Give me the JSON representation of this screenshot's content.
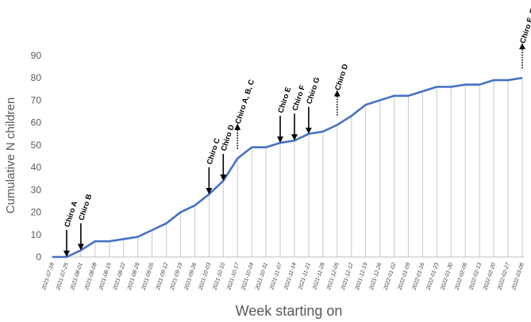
{
  "chart_data": {
    "type": "line",
    "title": "",
    "xlabel": "Week starting on",
    "ylabel": "Cumulative N children",
    "ylim": [
      0,
      90
    ],
    "yticks": [
      0,
      10,
      20,
      30,
      40,
      50,
      60,
      70,
      80,
      90
    ],
    "grid": "vertical drop lines",
    "line_color": "#4472c4",
    "dropline_color": "#c8c8c8",
    "x": [
      "2021-07-18",
      "2021-07-25",
      "2021-08-01",
      "2021-08-08",
      "2021-08-15",
      "2021-08-22",
      "2021-08-29",
      "2021-09-05",
      "2021-09-12",
      "2021-09-19",
      "2021-09-26",
      "2021-10-03",
      "2021-10-10",
      "2021-10-17",
      "2021-10-24",
      "2021-10-31",
      "2021-11-07",
      "2021-11-14",
      "2021-11-21",
      "2021-11-28",
      "2021-12-05",
      "2021-12-12",
      "2021-12-19",
      "2021-12-26",
      "2022-01-02",
      "2022-01-09",
      "2022-01-16",
      "2022-01-23",
      "2022-01-30",
      "2022-02-06",
      "2022-02-13",
      "2022-02-20",
      "2022-02-27",
      "2022-03-06"
    ],
    "y": [
      0,
      0,
      3,
      7,
      7,
      8,
      9,
      12,
      15,
      20,
      23,
      28,
      34,
      44,
      49,
      49,
      51,
      52,
      55,
      56,
      59,
      63,
      68,
      70,
      72,
      72,
      74,
      76,
      76,
      77,
      77,
      79,
      79,
      80
    ],
    "annotations": [
      {
        "label": "Chiro A",
        "x": "2021-07-25",
        "style": "solid"
      },
      {
        "label": "Chiro B",
        "x": "2021-08-01",
        "style": "solid"
      },
      {
        "label": "Chiro C",
        "x": "2021-10-03",
        "style": "solid"
      },
      {
        "label": "Chiro D",
        "x": "2021-10-10",
        "style": "solid"
      },
      {
        "label": "Chiro A, B, C",
        "x": "2021-10-17",
        "style": "dotted"
      },
      {
        "label": "Chiro E",
        "x": "2021-11-07",
        "style": "solid"
      },
      {
        "label": "Chiro F",
        "x": "2021-11-14",
        "style": "solid"
      },
      {
        "label": "Chiro G",
        "x": "2021-11-21",
        "style": "solid"
      },
      {
        "label": "Chiro D",
        "x": "2021-12-05",
        "style": "dotted"
      },
      {
        "label": "Chiro E, F, G",
        "x": "2022-03-06",
        "style": "dotted"
      }
    ]
  }
}
